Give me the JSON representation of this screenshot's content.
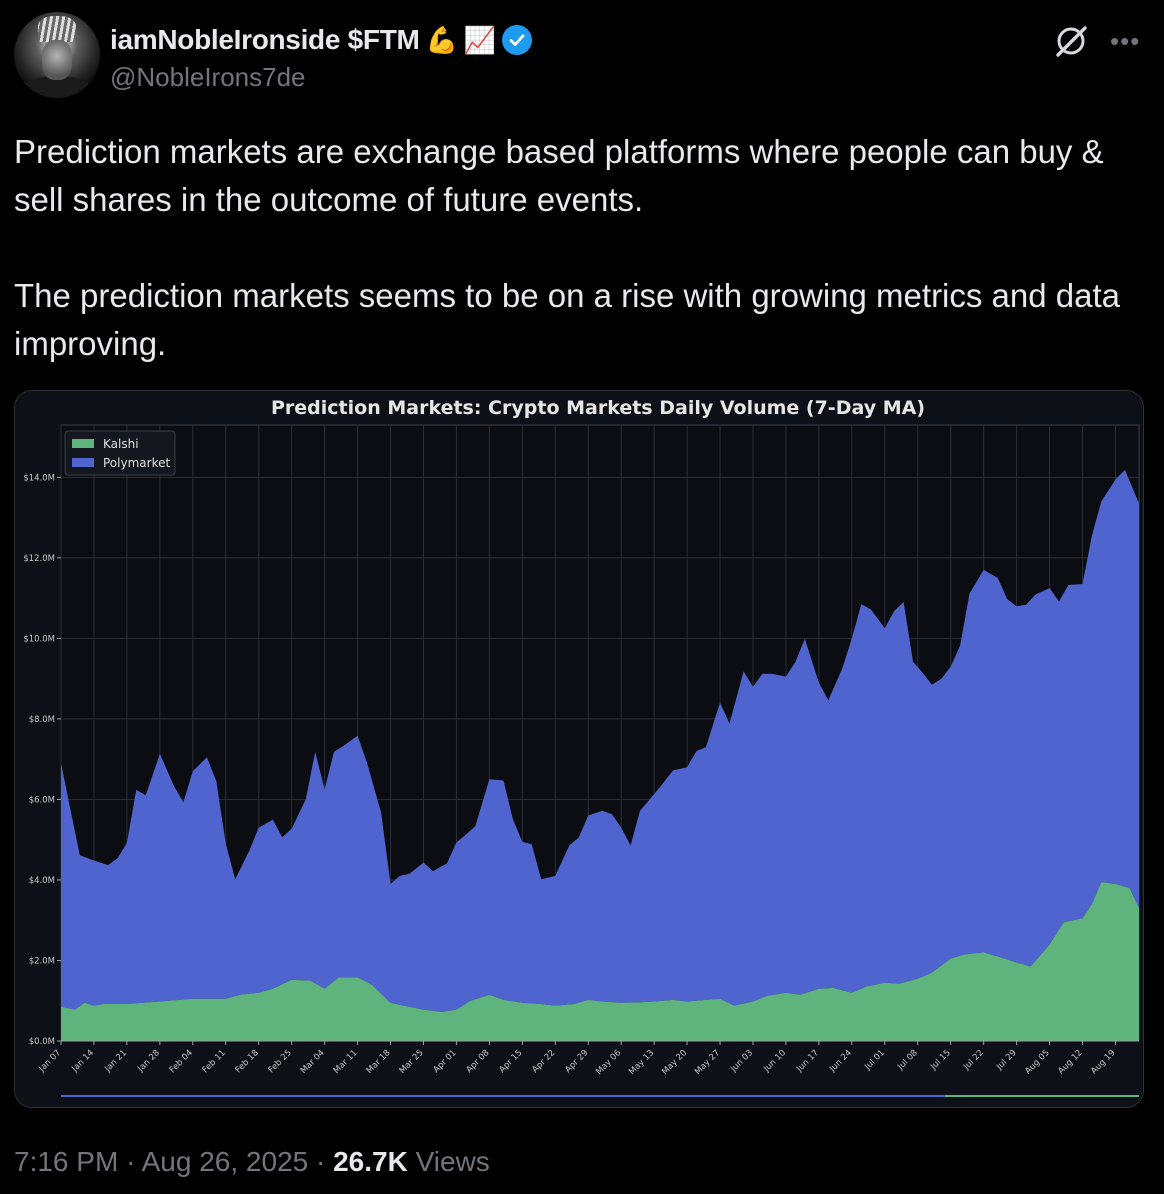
{
  "post": {
    "author": {
      "display_name": "iamNobleIronside $FTM",
      "name_emojis": [
        "💪",
        "📈"
      ],
      "handle": "@NobleIrons7de",
      "verified": true
    },
    "icons": {
      "grok": "grok-icon",
      "more": "more-icon",
      "verified": "verified-badge-icon"
    },
    "paragraphs": [
      "Prediction markets are exchange based platforms where people can buy & sell shares in the outcome of future events.",
      "The prediction markets seems to be on a rise with growing metrics and data improving."
    ],
    "time": "7:16 PM",
    "separator": "·",
    "date": "Aug 26, 2025",
    "views_count": "26.7K",
    "views_label": "Views"
  },
  "chart_data": {
    "type": "area",
    "stacked": true,
    "title": "Prediction Markets: Crypto Markets Daily Volume (7-Day MA)",
    "xlabel": "",
    "ylabel": "",
    "ylim": [
      0,
      15.3
    ],
    "yticks": [
      {
        "value": 0,
        "label": "$0.0M"
      },
      {
        "value": 2,
        "label": "$2.0M"
      },
      {
        "value": 4,
        "label": "$4.0M"
      },
      {
        "value": 6,
        "label": "$6.0M"
      },
      {
        "value": 8,
        "label": "$8.0M"
      },
      {
        "value": 10,
        "label": "$10.0M"
      },
      {
        "value": 12,
        "label": "$12.0M"
      },
      {
        "value": 14,
        "label": "$14.0M"
      }
    ],
    "x_start": "2025-01-07",
    "x_end": "2025-08-24",
    "xtick_labels": [
      "Jan 07",
      "Jan 14",
      "Jan 21",
      "Jan 28",
      "Feb 04",
      "Feb 11",
      "Feb 18",
      "Feb 25",
      "Mar 04",
      "Mar 11",
      "Mar 18",
      "Mar 25",
      "Apr 01",
      "Apr 08",
      "Apr 15",
      "Apr 22",
      "Apr 29",
      "May 06",
      "May 13",
      "May 20",
      "May 27",
      "Jun 03",
      "Jun 10",
      "Jun 17",
      "Jun 24",
      "Jul 01",
      "Jul 08",
      "Jul 15",
      "Jul 22",
      "Jul 29",
      "Aug 05",
      "Aug 12",
      "Aug 19"
    ],
    "grid": true,
    "legend_position": "top-left",
    "series": [
      {
        "name": "Kalshi",
        "color": "#5fb37c",
        "unit": "$M",
        "points": [
          [
            "2025-01-07",
            0.85
          ],
          [
            "2025-01-10",
            0.78
          ],
          [
            "2025-01-12",
            0.95
          ],
          [
            "2025-01-14",
            0.88
          ],
          [
            "2025-01-16",
            0.92
          ],
          [
            "2025-01-21",
            0.92
          ],
          [
            "2025-01-28",
            0.98
          ],
          [
            "2025-02-04",
            1.05
          ],
          [
            "2025-02-11",
            1.05
          ],
          [
            "2025-02-14",
            1.15
          ],
          [
            "2025-02-18",
            1.2
          ],
          [
            "2025-02-21",
            1.3
          ],
          [
            "2025-02-25",
            1.52
          ],
          [
            "2025-03-01",
            1.5
          ],
          [
            "2025-03-04",
            1.3
          ],
          [
            "2025-03-07",
            1.58
          ],
          [
            "2025-03-11",
            1.58
          ],
          [
            "2025-03-14",
            1.4
          ],
          [
            "2025-03-18",
            0.95
          ],
          [
            "2025-03-22",
            0.85
          ],
          [
            "2025-03-25",
            0.78
          ],
          [
            "2025-03-29",
            0.72
          ],
          [
            "2025-04-01",
            0.78
          ],
          [
            "2025-04-04",
            1.0
          ],
          [
            "2025-04-08",
            1.15
          ],
          [
            "2025-04-11",
            1.02
          ],
          [
            "2025-04-15",
            0.95
          ],
          [
            "2025-04-18",
            0.93
          ],
          [
            "2025-04-22",
            0.88
          ],
          [
            "2025-04-26",
            0.92
          ],
          [
            "2025-04-29",
            1.02
          ],
          [
            "2025-05-02",
            0.98
          ],
          [
            "2025-05-06",
            0.95
          ],
          [
            "2025-05-10",
            0.96
          ],
          [
            "2025-05-13",
            0.98
          ],
          [
            "2025-05-17",
            1.02
          ],
          [
            "2025-05-20",
            0.98
          ],
          [
            "2025-05-24",
            1.02
          ],
          [
            "2025-05-27",
            1.05
          ],
          [
            "2025-05-30",
            0.88
          ],
          [
            "2025-06-03",
            0.98
          ],
          [
            "2025-06-06",
            1.12
          ],
          [
            "2025-06-10",
            1.2
          ],
          [
            "2025-06-13",
            1.15
          ],
          [
            "2025-06-17",
            1.3
          ],
          [
            "2025-06-20",
            1.32
          ],
          [
            "2025-06-24",
            1.2
          ],
          [
            "2025-06-27",
            1.35
          ],
          [
            "2025-07-01",
            1.45
          ],
          [
            "2025-07-04",
            1.42
          ],
          [
            "2025-07-08",
            1.55
          ],
          [
            "2025-07-11",
            1.7
          ],
          [
            "2025-07-15",
            2.05
          ],
          [
            "2025-07-18",
            2.15
          ],
          [
            "2025-07-22",
            2.2
          ],
          [
            "2025-07-25",
            2.1
          ],
          [
            "2025-07-29",
            1.95
          ],
          [
            "2025-08-01",
            1.85
          ],
          [
            "2025-08-05",
            2.4
          ],
          [
            "2025-08-08",
            2.95
          ],
          [
            "2025-08-12",
            3.05
          ],
          [
            "2025-08-14",
            3.4
          ],
          [
            "2025-08-16",
            3.95
          ],
          [
            "2025-08-19",
            3.9
          ],
          [
            "2025-08-22",
            3.8
          ],
          [
            "2025-08-24",
            3.3
          ]
        ]
      },
      {
        "name": "Polymarket",
        "color": "#5064d0",
        "unit": "$M",
        "points": [
          [
            "2025-01-07",
            6.05
          ],
          [
            "2025-01-09",
            4.95
          ],
          [
            "2025-01-11",
            3.75
          ],
          [
            "2025-01-14",
            3.6
          ],
          [
            "2025-01-17",
            3.45
          ],
          [
            "2025-01-19",
            3.62
          ],
          [
            "2025-01-21",
            4.0
          ],
          [
            "2025-01-23",
            5.3
          ],
          [
            "2025-01-25",
            5.15
          ],
          [
            "2025-01-28",
            6.15
          ],
          [
            "2025-01-31",
            5.32
          ],
          [
            "2025-02-02",
            4.9
          ],
          [
            "2025-02-04",
            5.65
          ],
          [
            "2025-02-07",
            6.0
          ],
          [
            "2025-02-09",
            5.4
          ],
          [
            "2025-02-11",
            3.85
          ],
          [
            "2025-02-13",
            2.9
          ],
          [
            "2025-02-16",
            3.55
          ],
          [
            "2025-02-18",
            4.1
          ],
          [
            "2025-02-21",
            4.2
          ],
          [
            "2025-02-23",
            3.65
          ],
          [
            "2025-02-25",
            3.75
          ],
          [
            "2025-02-28",
            4.5
          ],
          [
            "2025-03-02",
            5.75
          ],
          [
            "2025-03-04",
            4.95
          ],
          [
            "2025-03-06",
            5.7
          ],
          [
            "2025-03-08",
            5.75
          ],
          [
            "2025-03-11",
            6.0
          ],
          [
            "2025-03-13",
            5.45
          ],
          [
            "2025-03-16",
            4.5
          ],
          [
            "2025-03-18",
            2.95
          ],
          [
            "2025-03-20",
            3.2
          ],
          [
            "2025-03-22",
            3.3
          ],
          [
            "2025-03-25",
            3.65
          ],
          [
            "2025-03-27",
            3.47
          ],
          [
            "2025-03-30",
            3.67
          ],
          [
            "2025-04-01",
            4.15
          ],
          [
            "2025-04-03",
            4.2
          ],
          [
            "2025-04-05",
            4.3
          ],
          [
            "2025-04-08",
            5.35
          ],
          [
            "2025-04-11",
            5.45
          ],
          [
            "2025-04-13",
            4.52
          ],
          [
            "2025-04-15",
            4.0
          ],
          [
            "2025-04-17",
            3.95
          ],
          [
            "2025-04-19",
            3.1
          ],
          [
            "2025-04-22",
            3.22
          ],
          [
            "2025-04-25",
            3.95
          ],
          [
            "2025-04-27",
            4.1
          ],
          [
            "2025-04-29",
            4.58
          ],
          [
            "2025-05-02",
            4.74
          ],
          [
            "2025-05-04",
            4.67
          ],
          [
            "2025-05-06",
            4.35
          ],
          [
            "2025-05-08",
            3.9
          ],
          [
            "2025-05-10",
            4.76
          ],
          [
            "2025-05-13",
            5.15
          ],
          [
            "2025-05-15",
            5.42
          ],
          [
            "2025-05-17",
            5.7
          ],
          [
            "2025-05-20",
            5.82
          ],
          [
            "2025-05-22",
            6.2
          ],
          [
            "2025-05-24",
            6.28
          ],
          [
            "2025-05-27",
            7.35
          ],
          [
            "2025-05-29",
            6.95
          ],
          [
            "2025-06-01",
            8.25
          ],
          [
            "2025-06-03",
            7.82
          ],
          [
            "2025-06-05",
            8.05
          ],
          [
            "2025-06-07",
            7.98
          ],
          [
            "2025-06-10",
            7.85
          ],
          [
            "2025-06-12",
            8.25
          ],
          [
            "2025-06-14",
            8.8
          ],
          [
            "2025-06-17",
            7.6
          ],
          [
            "2025-06-19",
            7.15
          ],
          [
            "2025-06-22",
            8.0
          ],
          [
            "2025-06-24",
            8.8
          ],
          [
            "2025-06-26",
            9.55
          ],
          [
            "2025-06-28",
            9.35
          ],
          [
            "2025-07-01",
            8.8
          ],
          [
            "2025-07-03",
            9.25
          ],
          [
            "2025-07-05",
            9.45
          ],
          [
            "2025-07-07",
            7.9
          ],
          [
            "2025-07-09",
            7.55
          ],
          [
            "2025-07-11",
            7.15
          ],
          [
            "2025-07-13",
            7.12
          ],
          [
            "2025-07-15",
            7.25
          ],
          [
            "2025-07-17",
            7.7
          ],
          [
            "2025-07-19",
            8.95
          ],
          [
            "2025-07-22",
            9.5
          ],
          [
            "2025-07-25",
            9.4
          ],
          [
            "2025-07-27",
            8.95
          ],
          [
            "2025-07-29",
            8.85
          ],
          [
            "2025-07-31",
            8.95
          ],
          [
            "2025-08-02",
            9.1
          ],
          [
            "2025-08-05",
            8.85
          ],
          [
            "2025-08-07",
            8.15
          ],
          [
            "2025-08-09",
            8.35
          ],
          [
            "2025-08-12",
            8.3
          ],
          [
            "2025-08-14",
            9.15
          ],
          [
            "2025-08-16",
            9.45
          ],
          [
            "2025-08-19",
            10.05
          ],
          [
            "2025-08-21",
            10.35
          ],
          [
            "2025-08-24",
            10.05
          ]
        ]
      }
    ]
  }
}
